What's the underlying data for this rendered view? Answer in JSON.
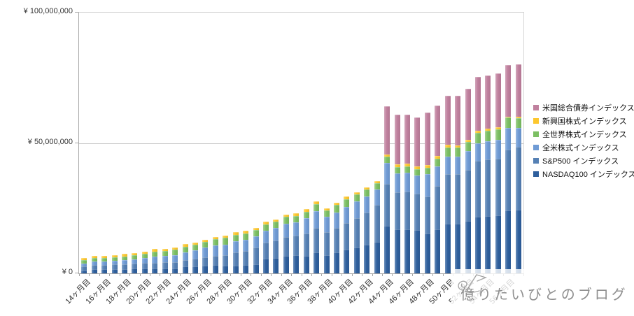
{
  "chart_data": {
    "type": "bar",
    "stacked": true,
    "title": "",
    "xlabel": "",
    "ylabel": "",
    "grid": true,
    "legend_position": "right",
    "legend_order": "top-of-stack-first",
    "x_label_every": 2,
    "y_axis": {
      "min": 0,
      "max": 100000000,
      "ticks": [
        {
          "value": 0,
          "label": "¥ 0"
        },
        {
          "value": 50000000,
          "label": "¥ 50,000,000"
        },
        {
          "value": 100000000,
          "label": "¥ 100,000,000"
        }
      ]
    },
    "categories": [
      "14ヶ月目",
      "15ヶ月目",
      "16ヶ月目",
      "17ヶ月目",
      "18ヶ月目",
      "19ヶ月目",
      "20ヶ月目",
      "21ヶ月目",
      "22ヶ月目",
      "23ヶ月目",
      "24ヶ月目",
      "25ヶ月目",
      "26ヶ月目",
      "27ヶ月目",
      "28ヶ月目",
      "29ヶ月目",
      "30ヶ月目",
      "31ヶ月目",
      "32ヶ月目",
      "33ヶ月目",
      "34ヶ月目",
      "35ヶ月目",
      "36ヶ月目",
      "37ヶ月目",
      "38ヶ月目",
      "39ヶ月目",
      "40ヶ月目",
      "41ヶ月目",
      "42ヶ月目",
      "43ヶ月目",
      "44ヶ月目",
      "45ヶ月目",
      "46ヶ月目",
      "47ヶ月目",
      "48ヶ月目",
      "49ヶ月目",
      "50ヶ月目",
      "51ヶ月目",
      "52ヶ月目",
      "53ヶ月目",
      "54ヶ月目",
      "55ヶ月目",
      "56ヶ月目",
      "57ヶ月目"
    ],
    "series": [
      {
        "name": "NASDAQ100 インデックス",
        "color": "#2e5f9d",
        "values": [
          1100000,
          1500000,
          1500000,
          1600000,
          1700000,
          1750000,
          1800000,
          1800000,
          1900000,
          2000000,
          2700000,
          2800000,
          2900000,
          3100000,
          2900000,
          2900000,
          3200000,
          3600000,
          5600000,
          6000000,
          6800000,
          7000000,
          6700000,
          8000000,
          7000000,
          8000000,
          9000000,
          10000000,
          11000000,
          12000000,
          18300000,
          16900000,
          17000000,
          16500000,
          15200000,
          17000000,
          19100000,
          19000000,
          20000000,
          21800000,
          22000000,
          22200000,
          24100000,
          24500000
        ]
      },
      {
        "name": "S&P500 インデックス",
        "color": "#5580b4",
        "values": [
          1500000,
          1800000,
          1750000,
          1850000,
          1900000,
          2000000,
          2100000,
          2200000,
          2300000,
          2400000,
          2500000,
          2800000,
          3300000,
          3600000,
          4000000,
          5200000,
          5400000,
          6200000,
          6200000,
          6600000,
          7200000,
          7400000,
          8500000,
          9500000,
          8700000,
          9400000,
          10300000,
          11200000,
          12200000,
          14300000,
          16000000,
          14300000,
          14400000,
          14000000,
          14300000,
          16500000,
          19100000,
          19000000,
          19800000,
          21400000,
          21600000,
          21800000,
          23300000,
          24100000
        ]
      },
      {
        "name": "全米株式インデックス",
        "color": "#6f9bd5",
        "values": [
          1200000,
          1300000,
          1300000,
          1400000,
          1500000,
          1700000,
          1900000,
          2500000,
          2600000,
          2700000,
          2850000,
          3200000,
          3700000,
          4000000,
          4200000,
          4200000,
          4300000,
          4450000,
          4650000,
          4800000,
          5100000,
          5200000,
          6000000,
          6300000,
          5900000,
          6000000,
          6200000,
          6300000,
          6200000,
          5800000,
          8000000,
          7100000,
          7200000,
          7000000,
          8700000,
          7500000,
          6700000,
          6800000,
          7000000,
          6700000,
          7000000,
          7200000,
          8300000,
          7100000
        ]
      },
      {
        "name": "全世界株式インデックス",
        "color": "#7cbf63",
        "values": [
          1200000,
          1200000,
          1250000,
          1350000,
          1400000,
          1550000,
          1600000,
          1800000,
          1800000,
          1900000,
          2050000,
          2100000,
          2200000,
          2400000,
          2500000,
          2500000,
          2500000,
          2400000,
          2400000,
          2400000,
          2500000,
          2500000,
          2500000,
          2800000,
          2500000,
          2800000,
          2900000,
          2800000,
          2700000,
          2500000,
          2500000,
          2500000,
          2500000,
          2500000,
          2400000,
          3000000,
          3400000,
          3400000,
          3500000,
          4000000,
          4000000,
          4000000,
          4000000,
          3900000
        ]
      },
      {
        "name": "新興国株式インデックス",
        "color": "#fdc72e",
        "values": [
          1000000,
          900000,
          800000,
          900000,
          900000,
          900000,
          900000,
          1000000,
          900000,
          900000,
          1100000,
          1000000,
          900000,
          900000,
          900000,
          900000,
          900000,
          900000,
          900000,
          900000,
          900000,
          900000,
          900000,
          1000000,
          900000,
          1000000,
          1000000,
          900000,
          900000,
          900000,
          800000,
          1000000,
          1000000,
          1000000,
          900000,
          1000000,
          1100000,
          1000000,
          900000,
          900000,
          900000,
          800000,
          400000,
          400000
        ]
      },
      {
        "name": "米国総合債券インデックス",
        "color": "#c0809e",
        "values": [
          0,
          0,
          0,
          0,
          0,
          0,
          0,
          0,
          0,
          0,
          0,
          0,
          0,
          0,
          0,
          0,
          0,
          0,
          0,
          0,
          0,
          0,
          0,
          0,
          0,
          0,
          0,
          0,
          0,
          0,
          18400000,
          19000000,
          18800000,
          18700000,
          20200000,
          19400000,
          18800000,
          18800000,
          19500000,
          20500000,
          20500000,
          20600000,
          19900000,
          20200000
        ]
      }
    ]
  },
  "watermark": {
    "text": "億りたいびとのブログ",
    "icon": "sailboat-doodle"
  },
  "style": {
    "background": "#ffffff",
    "grid_color": "#c9c9c9",
    "axis_color": "#a6a6a6",
    "tick_label_color": "#333333",
    "legend_text_color": "#111111",
    "watermark_color": "#8f8f8f"
  }
}
